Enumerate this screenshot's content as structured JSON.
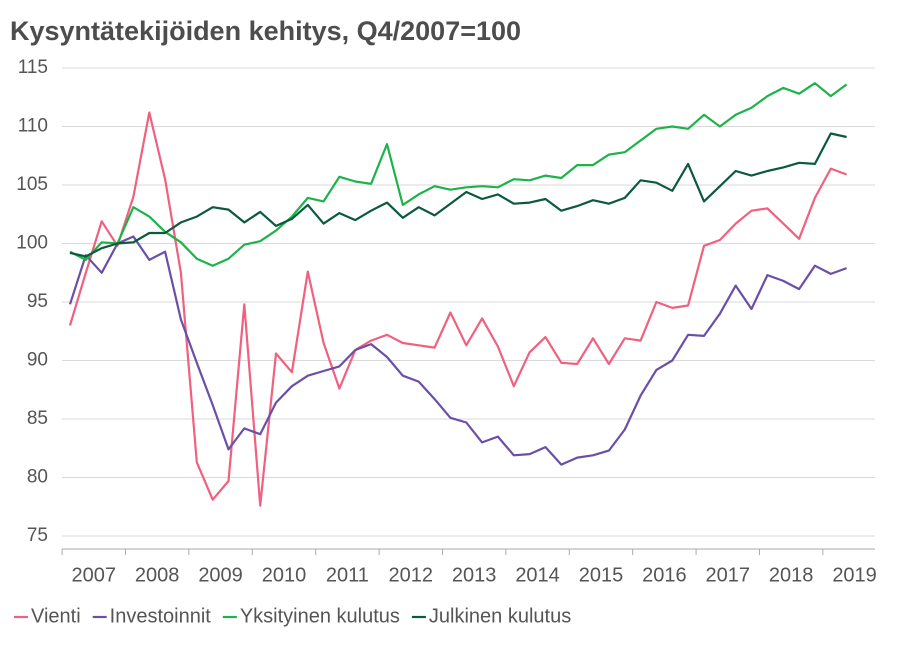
{
  "chart_data": {
    "type": "line",
    "title": "Kysyntätekijöiden kehitys, Q4/2007=100",
    "categories": [
      "2007",
      null,
      null,
      null,
      "2008",
      null,
      null,
      null,
      "2009",
      null,
      null,
      null,
      "2010",
      null,
      null,
      null,
      "2011",
      null,
      null,
      null,
      "2012",
      null,
      null,
      null,
      "2013",
      null,
      null,
      null,
      "2014",
      null,
      null,
      null,
      "2015",
      null,
      null,
      null,
      "2016",
      null,
      null,
      null,
      "2017",
      null,
      null,
      null,
      "2018",
      null,
      null,
      null,
      "2019",
      null
    ],
    "series": [
      {
        "name": "Vienti",
        "color": "#f0607f",
        "values": [
          93,
          97.5,
          101.9,
          99.8,
          104,
          111.2,
          105.5,
          97.5,
          81.3,
          78.1,
          79.7,
          94.8,
          77.6,
          90.6,
          89,
          97.6,
          91.5,
          87.6,
          90.9,
          91.7,
          92.2,
          91.5,
          91.3,
          91.1,
          94.1,
          91.3,
          93.6,
          91.2,
          87.8,
          90.7,
          92,
          89.8,
          89.7,
          91.9,
          89.7,
          91.9,
          91.7,
          95,
          94.5,
          94.7,
          99.8,
          100.3,
          101.7,
          102.8,
          103,
          101.7,
          100.4,
          103.9,
          106.4,
          105.9
        ]
      },
      {
        "name": "Investoinnit",
        "color": "#6a4fa8",
        "values": [
          94.8,
          99,
          97.5,
          100,
          100.6,
          98.6,
          99.3,
          93.5,
          89.8,
          86.2,
          82.4,
          84.2,
          83.7,
          86.4,
          87.8,
          88.7,
          89.1,
          89.5,
          90.9,
          91.4,
          90.3,
          88.7,
          88.2,
          86.7,
          85.1,
          84.7,
          83,
          83.5,
          81.9,
          82,
          82.6,
          81.1,
          81.7,
          81.9,
          82.3,
          84.1,
          87,
          89.2,
          90,
          92.2,
          92.1,
          94,
          96.4,
          94.4,
          97.3,
          96.8,
          96.1,
          98.1,
          97.4,
          97.9
        ]
      },
      {
        "name": "Yksityinen kulutus",
        "color": "#1db34a",
        "values": [
          99.3,
          98.6,
          100.1,
          100,
          103.1,
          102.3,
          101,
          100.1,
          98.7,
          98.1,
          98.7,
          99.9,
          100.2,
          101.1,
          102.3,
          103.9,
          103.6,
          105.7,
          105.3,
          105.1,
          108.5,
          103.3,
          104.2,
          104.9,
          104.6,
          104.8,
          104.9,
          104.8,
          105.5,
          105.4,
          105.8,
          105.6,
          106.7,
          106.7,
          107.6,
          107.8,
          108.8,
          109.8,
          110,
          109.8,
          111,
          110,
          111,
          111.6,
          112.6,
          113.3,
          112.8,
          113.7,
          112.6,
          113.6
        ]
      },
      {
        "name": "Julkinen kulutus",
        "color": "#0b5a3c",
        "values": [
          99.2,
          98.9,
          99.6,
          100,
          100.1,
          100.9,
          100.9,
          101.8,
          102.3,
          103.1,
          102.9,
          101.8,
          102.7,
          101.5,
          102.1,
          103.3,
          101.7,
          102.6,
          102,
          102.8,
          103.5,
          102.2,
          103.1,
          102.4,
          103.4,
          104.4,
          103.8,
          104.2,
          103.4,
          103.5,
          103.8,
          102.8,
          103.2,
          103.7,
          103.4,
          103.9,
          105.4,
          105.2,
          104.5,
          106.8,
          103.6,
          104.9,
          106.2,
          105.8,
          106.2,
          106.5,
          106.9,
          106.8,
          109.4,
          109.1
        ]
      }
    ],
    "ylim": [
      75,
      115
    ],
    "yticks": [
      75,
      80,
      85,
      90,
      95,
      100,
      105,
      110,
      115
    ],
    "grid": true,
    "legend": "bottom"
  }
}
